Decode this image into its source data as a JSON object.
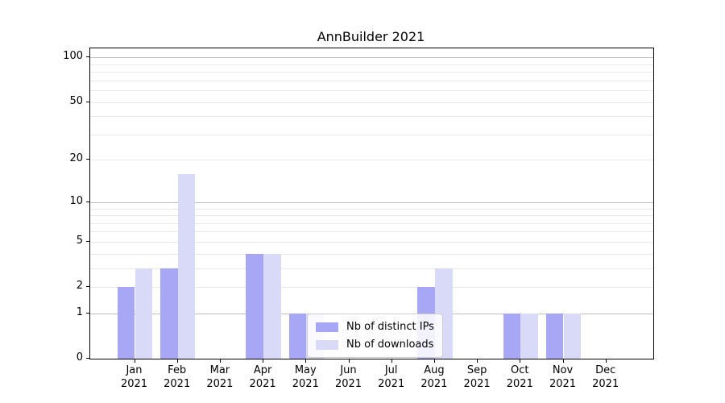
{
  "title": "AnnBuilder 2021",
  "chart_data": {
    "type": "bar",
    "title": "AnnBuilder 2021",
    "xlabel": "",
    "ylabel": "",
    "yscale": "log1p",
    "ylim": [
      0,
      115
    ],
    "grid": true,
    "legend_position": "lower-center-inside",
    "categories": [
      [
        "Jan",
        "2021"
      ],
      [
        "Feb",
        "2021"
      ],
      [
        "Mar",
        "2021"
      ],
      [
        "Apr",
        "2021"
      ],
      [
        "May",
        "2021"
      ],
      [
        "Jun",
        "2021"
      ],
      [
        "Jul",
        "2021"
      ],
      [
        "Aug",
        "2021"
      ],
      [
        "Sep",
        "2021"
      ],
      [
        "Oct",
        "2021"
      ],
      [
        "Nov",
        "2021"
      ],
      [
        "Dec",
        "2021"
      ]
    ],
    "series": [
      {
        "name": "Nb of distinct IPs",
        "color": "#a7a7f5",
        "values": [
          2,
          3,
          0,
          4,
          1,
          0,
          0,
          2,
          0,
          1,
          1,
          0
        ]
      },
      {
        "name": "Nb of downloads",
        "color": "#d9d9f8",
        "values": [
          3,
          16,
          0,
          4,
          1,
          0,
          0,
          3,
          0,
          1,
          1,
          0
        ]
      }
    ],
    "yticks": [
      0,
      1,
      2,
      5,
      10,
      20,
      50,
      100
    ],
    "grid_major": [
      1,
      10,
      100
    ],
    "grid_minor": [
      2,
      3,
      4,
      5,
      6,
      7,
      8,
      9,
      20,
      30,
      40,
      50,
      60,
      70,
      80,
      90
    ],
    "colors": {
      "grid_major": "#bdbdbd",
      "grid_minor": "#e9e9e9",
      "axis": "#000000",
      "legend_border": "#cccccc"
    }
  }
}
